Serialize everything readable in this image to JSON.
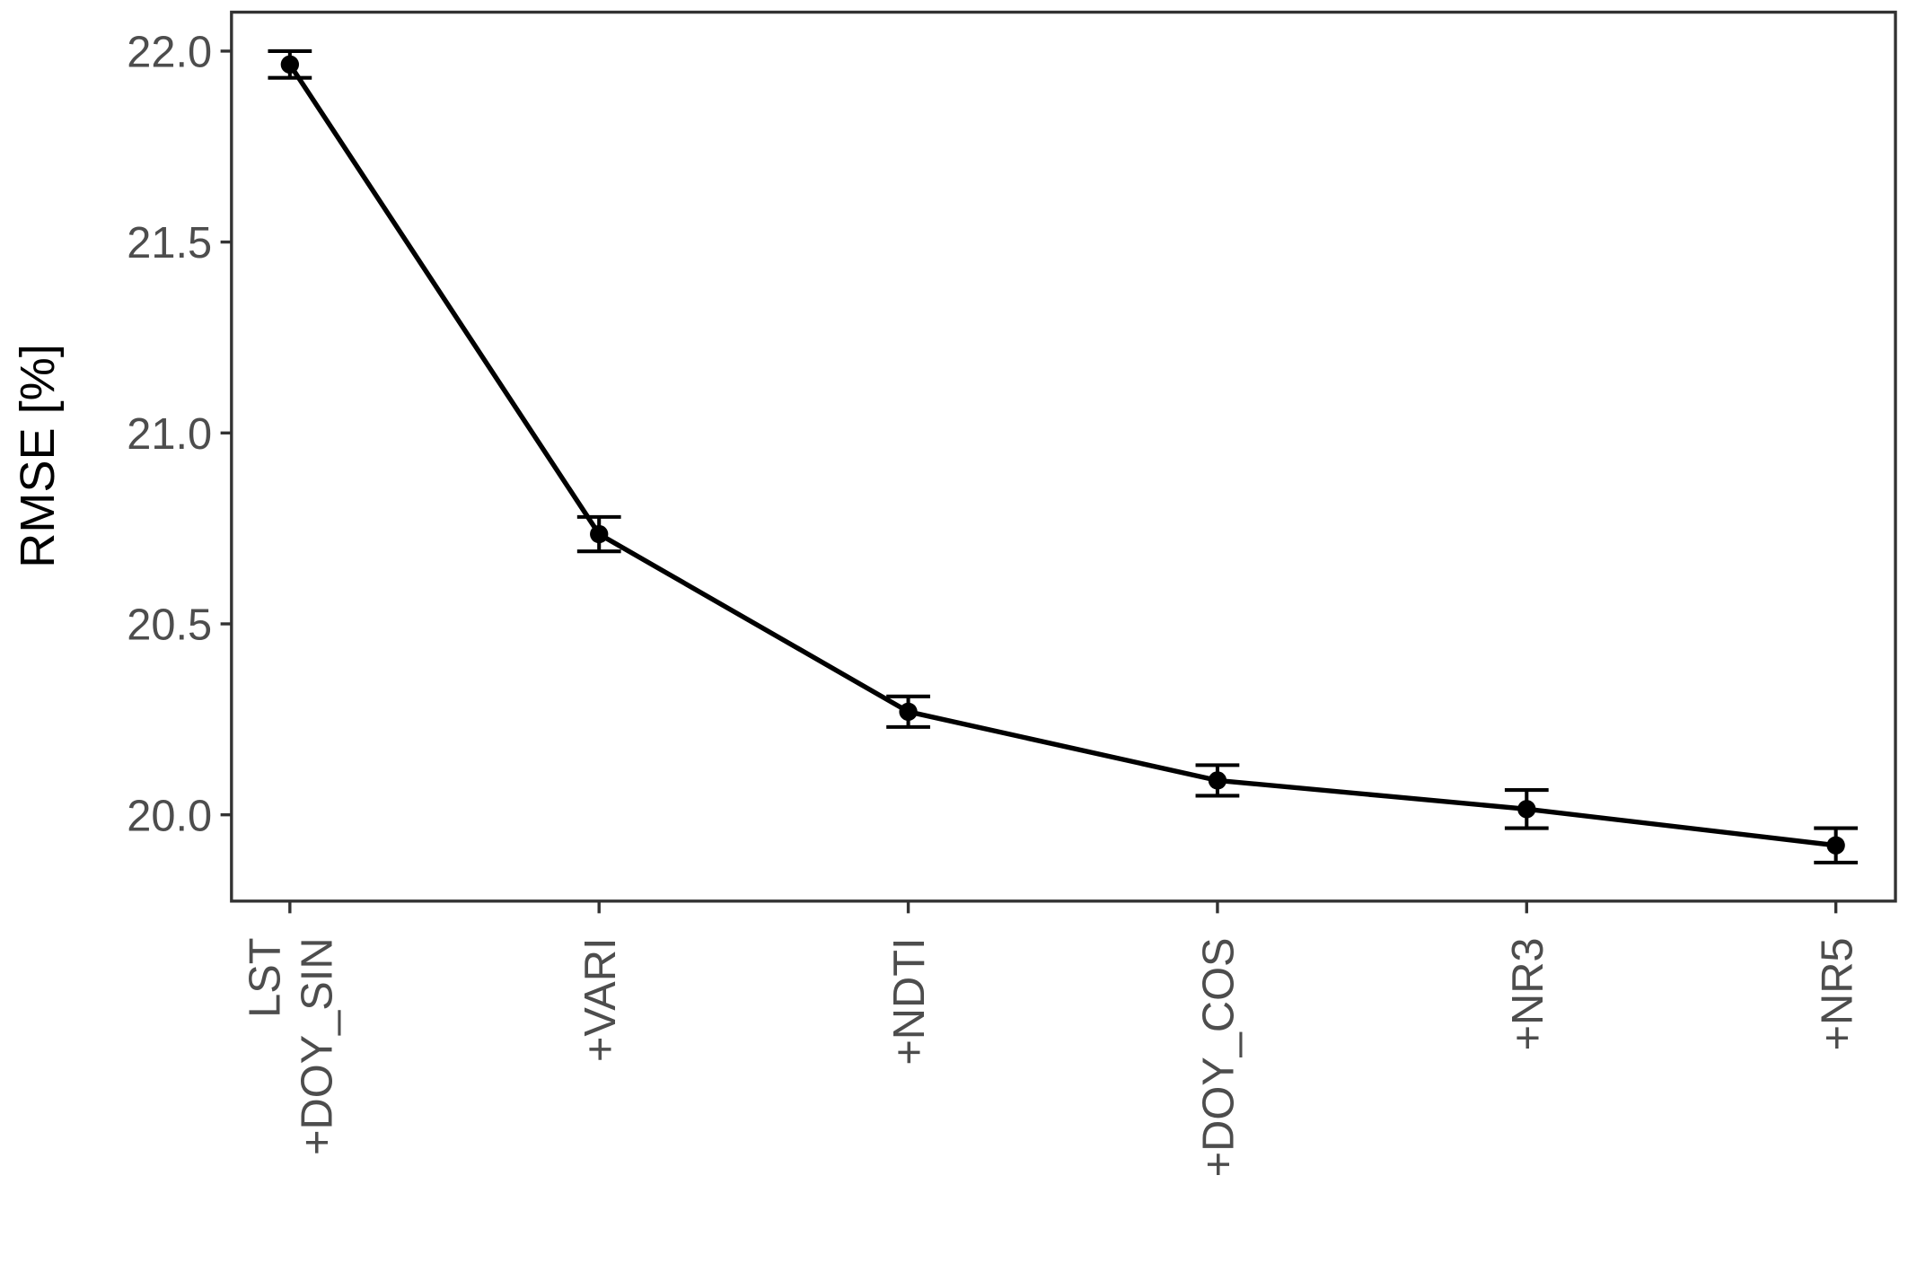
{
  "chart_data": {
    "type": "line",
    "y_label": "RMSE [%]",
    "categories": [
      "LST\n+DOY_SIN",
      "+VARI",
      "+NDTI",
      "+DOY_COS",
      "+NR3",
      "+NR5"
    ],
    "values": [
      21.965,
      20.735,
      20.27,
      20.09,
      20.015,
      19.92
    ],
    "errors": [
      0.035,
      0.045,
      0.04,
      0.04,
      0.05,
      0.045
    ],
    "color": "#000000",
    "ylim": [
      19.774,
      22.102
    ],
    "yticks": [
      {
        "value": 20,
        "label": "20.0"
      },
      20.5,
      {
        "value": 21,
        "label": "21.0"
      },
      21.5,
      {
        "value": 22,
        "label": "22.0"
      }
    ],
    "grid": false
  }
}
